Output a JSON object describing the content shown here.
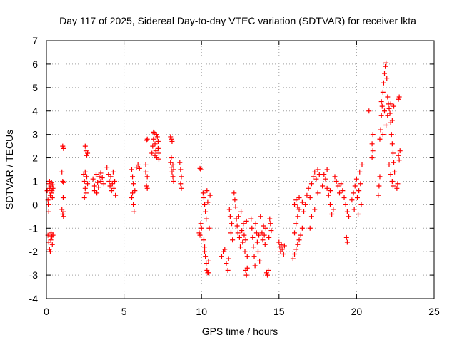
{
  "chart_data": {
    "type": "scatter",
    "title": "Day 117 of 2025, Sidereal Day-to-day VTEC variation (SDTVAR) for receiver lkta",
    "xlabel": "GPS time / hours",
    "ylabel": "SDTVAR / TECUs",
    "xlim": [
      0,
      25
    ],
    "ylim": [
      -4,
      7
    ],
    "xticks": [
      0,
      5,
      10,
      15,
      20,
      25
    ],
    "yticks": [
      -4,
      -3,
      -2,
      -1,
      0,
      1,
      2,
      3,
      4,
      5,
      6,
      7
    ],
    "grid": true,
    "marker": "+",
    "marker_color": "#ff0000",
    "series": [
      {
        "name": "SDTVAR",
        "points": [
          [
            0.05,
            0.6
          ],
          [
            0.1,
            0.2
          ],
          [
            0.12,
            0.0
          ],
          [
            0.15,
            -0.3
          ],
          [
            0.18,
            0.9
          ],
          [
            0.2,
            1.0
          ],
          [
            0.22,
            0.7
          ],
          [
            0.25,
            0.4
          ],
          [
            0.28,
            0.8
          ],
          [
            0.3,
            0.5
          ],
          [
            0.33,
            0.95
          ],
          [
            0.36,
            0.6
          ],
          [
            0.38,
            0.3
          ],
          [
            0.4,
            0.85
          ],
          [
            0.42,
            0.7
          ],
          [
            0.1,
            -1.3
          ],
          [
            0.15,
            -1.6
          ],
          [
            0.2,
            -1.9
          ],
          [
            0.25,
            -2.0
          ],
          [
            0.28,
            -1.5
          ],
          [
            0.3,
            -1.2
          ],
          [
            0.35,
            -1.35
          ],
          [
            0.38,
            -1.7
          ],
          [
            0.42,
            -1.3
          ],
          [
            1.05,
            2.5
          ],
          [
            1.1,
            2.4
          ],
          [
            1.0,
            1.4
          ],
          [
            1.05,
            1.0
          ],
          [
            1.1,
            0.95
          ],
          [
            1.08,
            0.3
          ],
          [
            1.0,
            -0.2
          ],
          [
            1.05,
            -0.4
          ],
          [
            1.1,
            -0.5
          ],
          [
            1.12,
            -0.3
          ],
          [
            2.5,
            2.5
          ],
          [
            2.55,
            2.3
          ],
          [
            2.6,
            2.1
          ],
          [
            2.65,
            2.2
          ],
          [
            2.4,
            1.3
          ],
          [
            2.45,
            1.0
          ],
          [
            2.5,
            0.7
          ],
          [
            2.55,
            0.5
          ],
          [
            2.6,
            1.2
          ],
          [
            2.65,
            0.9
          ],
          [
            2.45,
            0.3
          ],
          [
            2.5,
            1.4
          ],
          [
            3.0,
            1.1
          ],
          [
            3.1,
            0.8
          ],
          [
            3.2,
            1.3
          ],
          [
            3.3,
            0.95
          ],
          [
            3.4,
            1.2
          ],
          [
            3.5,
            1.0
          ],
          [
            3.6,
            1.15
          ],
          [
            3.1,
            0.6
          ],
          [
            3.25,
            0.5
          ],
          [
            3.35,
            0.75
          ],
          [
            3.5,
            1.35
          ],
          [
            3.7,
            0.9
          ],
          [
            3.9,
            1.6
          ],
          [
            4.0,
            1.3
          ],
          [
            4.05,
            1.0
          ],
          [
            4.1,
            0.8
          ],
          [
            4.15,
            1.2
          ],
          [
            4.2,
            0.6
          ],
          [
            4.25,
            0.9
          ],
          [
            4.3,
            1.4
          ],
          [
            4.35,
            0.7
          ],
          [
            4.4,
            1.0
          ],
          [
            4.45,
            0.4
          ],
          [
            5.5,
            1.5
          ],
          [
            5.55,
            1.2
          ],
          [
            5.6,
            0.9
          ],
          [
            5.55,
            0.5
          ],
          [
            5.5,
            0.3
          ],
          [
            5.6,
            0.0
          ],
          [
            5.65,
            -0.3
          ],
          [
            5.7,
            0.6
          ],
          [
            5.8,
            1.6
          ],
          [
            5.9,
            1.7
          ],
          [
            6.0,
            1.55
          ],
          [
            6.4,
            1.4
          ],
          [
            6.5,
            1.2
          ],
          [
            6.45,
            0.8
          ],
          [
            6.5,
            0.7
          ],
          [
            6.4,
            1.7
          ],
          [
            6.45,
            2.75
          ],
          [
            6.5,
            2.8
          ],
          [
            6.8,
            2.2
          ],
          [
            6.85,
            2.5
          ],
          [
            6.9,
            2.8
          ],
          [
            6.95,
            3.05
          ],
          [
            7.0,
            2.6
          ],
          [
            7.05,
            2.3
          ],
          [
            7.1,
            2.0
          ],
          [
            7.15,
            2.9
          ],
          [
            7.2,
            2.4
          ],
          [
            7.25,
            1.95
          ],
          [
            6.9,
            3.1
          ],
          [
            7.0,
            2.1
          ],
          [
            7.1,
            3.0
          ],
          [
            7.2,
            2.7
          ],
          [
            7.25,
            2.2
          ],
          [
            8.0,
            2.9
          ],
          [
            8.05,
            2.8
          ],
          [
            8.1,
            2.7
          ],
          [
            8.0,
            1.8
          ],
          [
            8.05,
            1.6
          ],
          [
            8.1,
            1.4
          ],
          [
            8.15,
            1.2
          ],
          [
            8.2,
            1.0
          ],
          [
            8.05,
            2.0
          ],
          [
            8.15,
            1.7
          ],
          [
            8.2,
            1.5
          ],
          [
            8.6,
            1.8
          ],
          [
            8.65,
            1.5
          ],
          [
            8.7,
            1.2
          ],
          [
            8.65,
            0.9
          ],
          [
            8.7,
            0.7
          ],
          [
            9.9,
            1.55
          ],
          [
            9.95,
            1.5
          ],
          [
            9.85,
            -1.2
          ],
          [
            9.9,
            -1.3
          ],
          [
            9.95,
            -0.8
          ],
          [
            10.0,
            -1.0
          ],
          [
            10.1,
            0.5
          ],
          [
            10.15,
            0.3
          ],
          [
            10.2,
            0.0
          ],
          [
            10.25,
            -0.3
          ],
          [
            10.3,
            -0.6
          ],
          [
            10.35,
            0.6
          ],
          [
            10.4,
            0.1
          ],
          [
            10.15,
            -1.5
          ],
          [
            10.2,
            -1.8
          ],
          [
            10.25,
            -2.2
          ],
          [
            10.3,
            -2.5
          ],
          [
            10.35,
            -2.8
          ],
          [
            10.4,
            -2.9
          ],
          [
            10.45,
            -2.4
          ],
          [
            10.5,
            -1.0
          ],
          [
            10.55,
            0.4
          ],
          [
            10.2,
            -2.0
          ],
          [
            10.45,
            -2.9
          ],
          [
            11.3,
            -2.2
          ],
          [
            11.4,
            -2.0
          ],
          [
            11.5,
            -1.9
          ],
          [
            11.6,
            -2.5
          ],
          [
            11.7,
            -2.8
          ],
          [
            11.75,
            -2.3
          ],
          [
            11.8,
            -0.2
          ],
          [
            11.85,
            -0.5
          ],
          [
            11.9,
            -1.2
          ],
          [
            11.95,
            -0.8
          ],
          [
            12.0,
            -1.5
          ],
          [
            12.1,
            0.5
          ],
          [
            12.15,
            0.2
          ],
          [
            12.2,
            -0.1
          ],
          [
            12.25,
            -0.6
          ],
          [
            12.3,
            -0.9
          ],
          [
            12.35,
            -1.2
          ],
          [
            12.4,
            -0.5
          ],
          [
            12.45,
            -1.4
          ],
          [
            12.5,
            -1.8
          ],
          [
            12.55,
            -0.3
          ],
          [
            12.6,
            -1.1
          ],
          [
            12.65,
            -1.6
          ],
          [
            12.7,
            -0.8
          ],
          [
            12.75,
            -1.3
          ],
          [
            12.8,
            -2.0
          ],
          [
            12.85,
            -1.5
          ],
          [
            12.9,
            -0.7
          ],
          [
            12.95,
            -2.2
          ],
          [
            12.85,
            -2.8
          ],
          [
            12.9,
            -3.0
          ],
          [
            12.95,
            -2.7
          ],
          [
            13.2,
            -0.6
          ],
          [
            13.25,
            -1.0
          ],
          [
            13.3,
            -1.4
          ],
          [
            13.35,
            -1.8
          ],
          [
            13.4,
            -2.2
          ],
          [
            13.45,
            -2.6
          ],
          [
            13.5,
            -0.8
          ],
          [
            13.55,
            -1.2
          ],
          [
            13.6,
            -1.6
          ],
          [
            13.65,
            -2.0
          ],
          [
            13.7,
            -1.3
          ],
          [
            13.75,
            -2.4
          ],
          [
            13.8,
            -0.5
          ],
          [
            13.9,
            -1.2
          ],
          [
            13.95,
            -1.5
          ],
          [
            14.0,
            -0.9
          ],
          [
            14.05,
            -1.3
          ],
          [
            14.1,
            -1.7
          ],
          [
            14.15,
            -1.0
          ],
          [
            14.2,
            -2.9
          ],
          [
            14.25,
            -3.0
          ],
          [
            14.3,
            -2.8
          ],
          [
            14.35,
            -1.4
          ],
          [
            14.4,
            -0.6
          ],
          [
            14.45,
            -0.8
          ],
          [
            14.5,
            -1.1
          ],
          [
            15.0,
            -1.6
          ],
          [
            15.05,
            -1.8
          ],
          [
            15.1,
            -2.0
          ],
          [
            15.15,
            -1.7
          ],
          [
            15.2,
            -1.9
          ],
          [
            15.3,
            -2.1
          ],
          [
            15.35,
            -1.75
          ],
          [
            15.9,
            -2.3
          ],
          [
            16.0,
            -2.1
          ],
          [
            16.1,
            -1.9
          ],
          [
            16.2,
            -1.7
          ],
          [
            16.3,
            -1.5
          ],
          [
            16.4,
            -1.3
          ],
          [
            16.5,
            -1.0
          ],
          [
            16.0,
            -1.2
          ],
          [
            16.1,
            -0.8
          ],
          [
            16.2,
            -0.5
          ],
          [
            16.3,
            -0.2
          ],
          [
            16.0,
            0.0
          ],
          [
            16.1,
            0.2
          ],
          [
            16.2,
            -0.1
          ],
          [
            16.3,
            0.3
          ],
          [
            16.5,
            0.1
          ],
          [
            16.6,
            -0.3
          ],
          [
            16.7,
            0.0
          ],
          [
            16.8,
            0.4
          ],
          [
            16.9,
            0.7
          ],
          [
            17.0,
            0.3
          ],
          [
            17.1,
            0.9
          ],
          [
            17.2,
            1.2
          ],
          [
            17.3,
            1.4
          ],
          [
            17.4,
            1.1
          ],
          [
            17.5,
            1.5
          ],
          [
            17.6,
            1.3
          ],
          [
            17.1,
            -0.5
          ],
          [
            17.3,
            -0.2
          ],
          [
            17.5,
            0.5
          ],
          [
            17.0,
            -1.0
          ],
          [
            17.8,
            0.8
          ],
          [
            17.9,
            1.3
          ],
          [
            18.0,
            1.1
          ],
          [
            18.1,
            0.7
          ],
          [
            18.2,
            0.4
          ],
          [
            18.3,
            0.0
          ],
          [
            18.4,
            -0.4
          ],
          [
            18.5,
            -0.2
          ],
          [
            18.1,
            1.5
          ],
          [
            18.3,
            0.6
          ],
          [
            18.6,
            1.2
          ],
          [
            18.7,
            1.0
          ],
          [
            18.8,
            0.8
          ],
          [
            18.9,
            0.5
          ],
          [
            19.0,
            0.9
          ],
          [
            19.1,
            0.6
          ],
          [
            19.2,
            0.3
          ],
          [
            19.3,
            0.0
          ],
          [
            19.4,
            -0.3
          ],
          [
            19.5,
            -0.5
          ],
          [
            19.35,
            -1.4
          ],
          [
            19.4,
            -1.6
          ],
          [
            19.7,
            0.2
          ],
          [
            19.8,
            0.5
          ],
          [
            19.85,
            -0.2
          ],
          [
            19.9,
            0.8
          ],
          [
            20.0,
            1.1
          ],
          [
            20.05,
            0.3
          ],
          [
            20.1,
            -0.4
          ],
          [
            20.15,
            0.6
          ],
          [
            20.2,
            1.4
          ],
          [
            20.25,
            0.9
          ],
          [
            20.3,
            0.0
          ],
          [
            20.35,
            1.7
          ],
          [
            20.8,
            4.0
          ],
          [
            21.0,
            2.6
          ],
          [
            21.05,
            2.3
          ],
          [
            21.0,
            2.0
          ],
          [
            21.05,
            3.0
          ],
          [
            21.4,
            0.4
          ],
          [
            21.45,
            0.8
          ],
          [
            21.5,
            1.2
          ],
          [
            21.5,
            2.8
          ],
          [
            21.55,
            3.2
          ],
          [
            21.6,
            3.8
          ],
          [
            21.65,
            4.2
          ],
          [
            21.7,
            4.8
          ],
          [
            21.75,
            5.2
          ],
          [
            21.8,
            5.6
          ],
          [
            21.85,
            5.9
          ],
          [
            21.9,
            6.05
          ],
          [
            21.95,
            5.4
          ],
          [
            22.0,
            4.6
          ],
          [
            21.6,
            4.4
          ],
          [
            21.7,
            3.0
          ],
          [
            21.8,
            4.0
          ],
          [
            21.9,
            3.4
          ],
          [
            22.0,
            3.8
          ],
          [
            22.05,
            4.3
          ],
          [
            22.1,
            4.1
          ],
          [
            22.15,
            3.9
          ],
          [
            22.2,
            3.5
          ],
          [
            22.25,
            3.0
          ],
          [
            22.3,
            2.6
          ],
          [
            22.35,
            2.2
          ],
          [
            22.4,
            1.8
          ],
          [
            22.45,
            1.4
          ],
          [
            22.2,
            4.3
          ],
          [
            22.3,
            3.6
          ],
          [
            22.4,
            4.2
          ],
          [
            22.1,
            1.7
          ],
          [
            22.2,
            1.3
          ],
          [
            22.3,
            1.0
          ],
          [
            22.35,
            0.8
          ],
          [
            22.6,
            0.7
          ],
          [
            22.65,
            0.9
          ],
          [
            22.7,
            2.1
          ],
          [
            22.75,
            1.9
          ],
          [
            22.8,
            2.3
          ],
          [
            22.7,
            4.5
          ],
          [
            22.75,
            4.6
          ]
        ]
      }
    ]
  }
}
